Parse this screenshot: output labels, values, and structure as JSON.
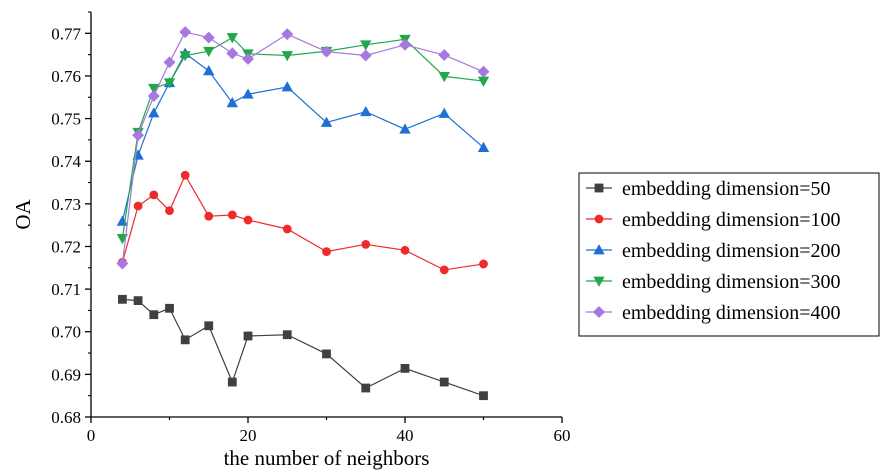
{
  "chart_data": {
    "type": "line",
    "title": "",
    "xlabel": "the number of neighbors",
    "ylabel": "OA",
    "xlim": [
      0,
      60
    ],
    "ylim": [
      0.68,
      0.775
    ],
    "xticks": [
      0,
      20,
      40,
      60
    ],
    "yticks": [
      0.68,
      0.69,
      0.7,
      0.71,
      0.72,
      0.73,
      0.74,
      0.75,
      0.76,
      0.77
    ],
    "xtick_labels": [
      "0",
      "20",
      "40",
      "60"
    ],
    "ytick_labels": [
      "0.68",
      "0.69",
      "0.70",
      "0.71",
      "0.72",
      "0.73",
      "0.74",
      "0.75",
      "0.76",
      "0.77"
    ],
    "grid": false,
    "legend_position": "right",
    "x": [
      4,
      6,
      8,
      10,
      12,
      15,
      18,
      20,
      25,
      30,
      35,
      40,
      45,
      50
    ],
    "series": [
      {
        "name": "embedding dimension=50",
        "color": "#404040",
        "marker": "square",
        "values": [
          0.7076,
          0.7073,
          0.704,
          0.7055,
          0.6981,
          0.7014,
          0.6882,
          0.699,
          0.6993,
          0.6948,
          0.6868,
          0.6914,
          0.6882,
          0.685
        ]
      },
      {
        "name": "embedding dimension=100",
        "color": "#ee2b2b",
        "marker": "circle",
        "values": [
          0.7163,
          0.7295,
          0.7321,
          0.7284,
          0.7367,
          0.7271,
          0.7274,
          0.7262,
          0.7241,
          0.7188,
          0.7205,
          0.7191,
          0.7145,
          0.7159
        ]
      },
      {
        "name": "embedding dimension=200",
        "color": "#1e6fd6",
        "marker": "triangle-up",
        "values": [
          0.7259,
          0.7414,
          0.7513,
          0.7584,
          0.7653,
          0.7612,
          0.7537,
          0.7557,
          0.7574,
          0.7491,
          0.7516,
          0.7475,
          0.7512,
          0.7432
        ]
      },
      {
        "name": "embedding dimension=300",
        "color": "#22a84a",
        "marker": "triangle-down",
        "values": [
          0.7219,
          0.7468,
          0.7571,
          0.7584,
          0.7648,
          0.7658,
          0.769,
          0.7652,
          0.7648,
          0.7658,
          0.7673,
          0.7686,
          0.7599,
          0.7588
        ]
      },
      {
        "name": "embedding dimension=400",
        "color": "#a878e0",
        "marker": "diamond",
        "values": [
          0.716,
          0.7461,
          0.7553,
          0.7632,
          0.7703,
          0.769,
          0.7653,
          0.764,
          0.7698,
          0.7657,
          0.7648,
          0.7673,
          0.7649,
          0.761
        ]
      }
    ]
  }
}
